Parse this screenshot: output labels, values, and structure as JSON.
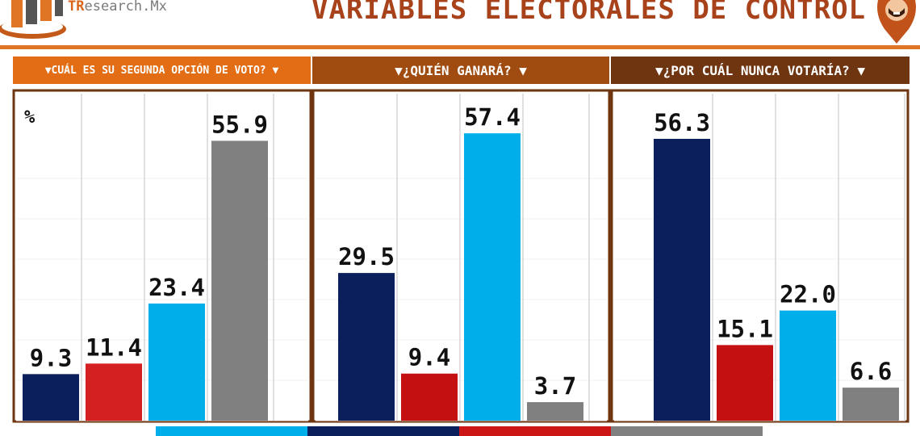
{
  "header": {
    "logo_prefix": "TR",
    "logo_text": "esearch.Mx",
    "title": "VARIABLES ELECTORALES DE CONTROL"
  },
  "colors": {
    "accent": "#e07525",
    "title": "#a8421b",
    "navy": "#0b1f5c",
    "red": "#d42020",
    "sky": "#00aeea",
    "gray": "#808080"
  },
  "chart_data": {
    "type": "bar",
    "unit_label": "%",
    "ylim": [
      0,
      65
    ],
    "grid": true,
    "legend": "bottom",
    "series_colors": [
      "#00aeea",
      "#0b1f5c",
      "#cc1616",
      "#808080"
    ],
    "panels": [
      {
        "title": "▼CUÁL ES SU SEGUNDA OPCIÓN DE VOTO? ▼",
        "bars": [
          {
            "value": 9.3,
            "label": "9.3",
            "color": "#0b1f5c"
          },
          {
            "value": 11.4,
            "label": "11.4",
            "color": "#d42020"
          },
          {
            "value": 23.4,
            "label": "23.4",
            "color": "#00aeea"
          },
          {
            "value": 55.9,
            "label": "55.9",
            "color": "#808080"
          }
        ]
      },
      {
        "title": "▼¿QUIÉN GANARÁ? ▼",
        "bars": [
          {
            "value": 29.5,
            "label": "29.5",
            "color": "#0b1f5c"
          },
          {
            "value": 9.4,
            "label": "9.4",
            "color": "#c41010"
          },
          {
            "value": 57.4,
            "label": "57.4",
            "color": "#00aeea"
          },
          {
            "value": 3.7,
            "label": "3.7",
            "color": "#808080"
          }
        ]
      },
      {
        "title": "▼¿POR CUÁL NUNCA VOTARÍA? ▼",
        "bars": [
          {
            "value": 56.3,
            "label": "56.3",
            "color": "#0b1f5c"
          },
          {
            "value": 15.1,
            "label": "15.1",
            "color": "#c41010"
          },
          {
            "value": 22.0,
            "label": "22.0",
            "color": "#00aeea"
          },
          {
            "value": 6.6,
            "label": "6.6",
            "color": "#808080"
          }
        ]
      }
    ]
  }
}
